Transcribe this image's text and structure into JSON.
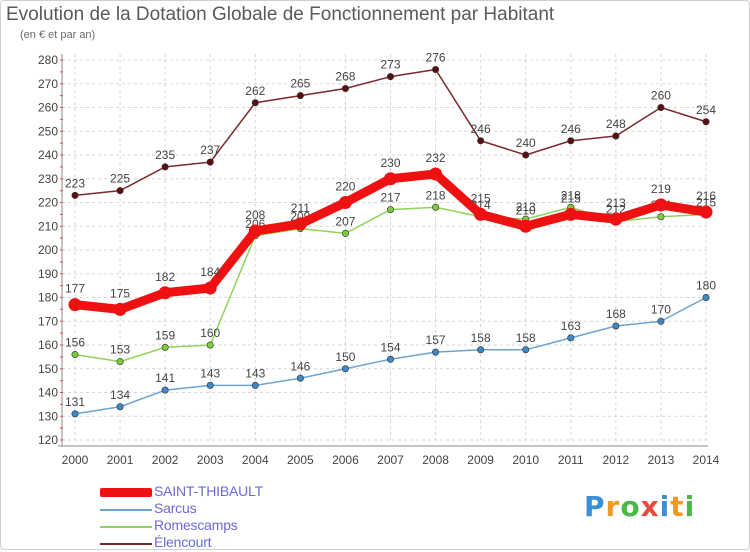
{
  "header": {
    "title": "Evolution de la Dotation Globale de Fonctionnement par Habitant",
    "subtitle": "(en € et par an)"
  },
  "logo": {
    "letters": [
      "P",
      "r",
      "o",
      "x",
      "i",
      "t",
      "i"
    ],
    "colors": [
      "#3a8fd6",
      "#f29a1f",
      "#49b847",
      "#e84b3c",
      "#3a8fd6",
      "#f29a1f",
      "#49b847"
    ]
  },
  "legend": [
    {
      "label": "SAINT-THIBAULT",
      "color": "#ee1111",
      "thick": true
    },
    {
      "label": "Sarcus",
      "color": "#6fa3cf",
      "thick": false
    },
    {
      "label": "Romescamps",
      "color": "#8fd45a",
      "thick": false
    },
    {
      "label": "Élencourt",
      "color": "#7a2a2a",
      "thick": false
    }
  ],
  "chart_data": {
    "type": "line",
    "title": "Evolution de la Dotation Globale de Fonctionnement par Habitant",
    "subtitle": "(en € et par an)",
    "x": [
      2000,
      2001,
      2002,
      2003,
      2004,
      2005,
      2006,
      2007,
      2008,
      2009,
      2010,
      2011,
      2012,
      2013,
      2014
    ],
    "ylim": [
      120,
      280
    ],
    "yticks": [
      120,
      130,
      140,
      150,
      160,
      170,
      180,
      190,
      200,
      210,
      220,
      230,
      240,
      250,
      260,
      270,
      280
    ],
    "grid": true,
    "legend_position": "bottom-left",
    "series": [
      {
        "name": "Élencourt",
        "color": "#7a2a2a",
        "marker": "#5a1010",
        "thick": false,
        "values": [
          223,
          225,
          235,
          237,
          262,
          265,
          268,
          273,
          276,
          246,
          240,
          246,
          248,
          260,
          254
        ]
      },
      {
        "name": "Romescamps",
        "color": "#8fd45a",
        "marker": "#7ccd3e",
        "thick": false,
        "values": [
          156,
          153,
          159,
          160,
          206,
          209,
          207,
          217,
          218,
          214,
          213,
          218,
          212,
          214,
          215
        ]
      },
      {
        "name": "Sarcus",
        "color": "#6fa3cf",
        "marker": "#3f88c8",
        "thick": false,
        "values": [
          131,
          134,
          141,
          143,
          143,
          146,
          150,
          154,
          157,
          158,
          158,
          163,
          168,
          170,
          180
        ]
      },
      {
        "name": "SAINT-THIBAULT",
        "color": "#ee1111",
        "marker": "#ee1111",
        "thick": true,
        "values": [
          177,
          175,
          182,
          184,
          208,
          211,
          220,
          230,
          232,
          215,
          210,
          215,
          213,
          219,
          216
        ]
      }
    ]
  }
}
